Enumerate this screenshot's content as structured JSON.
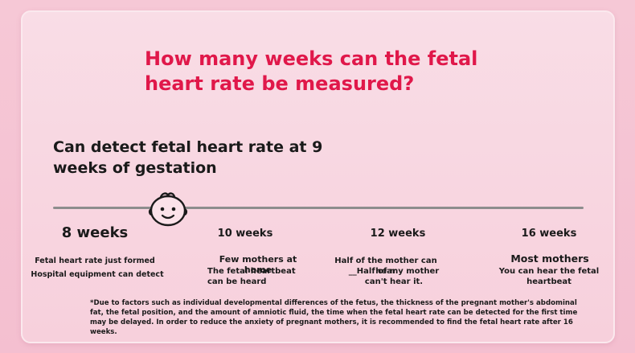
{
  "title": "How many weeks can the fetal heart rate be measured?",
  "subtitle": "Can detect fetal heart rate at 9 weeks of gestation",
  "icons": {
    "baby": "baby-face-icon"
  },
  "milestones": [
    {
      "week": "8 weeks",
      "line1": "Fetal heart rate just formed",
      "line2": "Hospital equipment can detect"
    },
    {
      "week": "10 weeks",
      "line1": "Few mothers at home",
      "line2": "The fetal heartbeat can be heard"
    },
    {
      "week": "12 weeks",
      "line1": "Half of the mother can hear",
      "line2": "__Half of my mother can't hear it."
    },
    {
      "week": "16 weeks",
      "line1": "Most mothers",
      "line2": "You can hear the fetal heartbeat"
    }
  ],
  "note": "*Due to factors such as individual developmental differences of the fetus, the thickness of the pregnant mother's abdominal fat, the fetal position, and the amount of amniotic fluid, the time when the fetal heart rate can be detected for the first time may be delayed. In order to reduce the anxiety of pregnant mothers, it is recommended to find the fetal heart rate after 16 weeks.",
  "colors": {
    "title": "#e0184a",
    "background": "#f6c8d6",
    "timeline": "#8d8d8d"
  }
}
